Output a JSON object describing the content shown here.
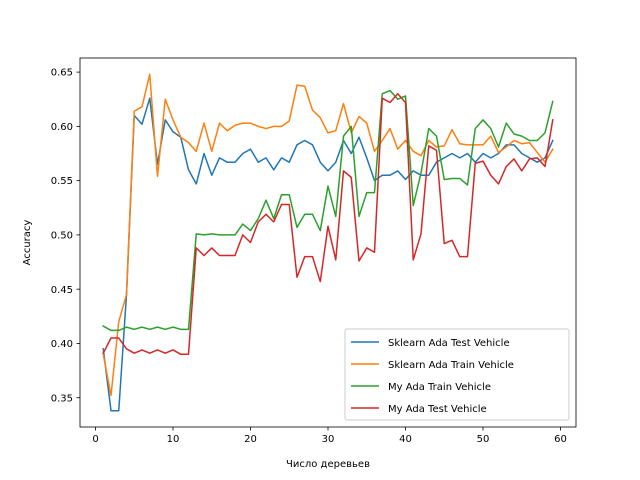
{
  "chart_data": {
    "type": "line",
    "title": "",
    "xlabel": "Число деревьев",
    "ylabel": "Accuracy",
    "xlim": [
      -2,
      62
    ],
    "ylim": [
      0.323,
      0.663
    ],
    "xticks": [
      0,
      10,
      20,
      30,
      40,
      50,
      60
    ],
    "yticks": [
      0.35,
      0.4,
      0.45,
      0.5,
      0.55,
      0.6,
      0.65
    ],
    "ytick_labels": [
      "0.35",
      "0.40",
      "0.45",
      "0.50",
      "0.55",
      "0.60",
      "0.65"
    ],
    "grid": false,
    "legend_position": "lower-right",
    "x": [
      1,
      2,
      3,
      4,
      5,
      6,
      7,
      8,
      9,
      10,
      11,
      12,
      13,
      14,
      15,
      16,
      17,
      18,
      19,
      20,
      21,
      22,
      23,
      24,
      25,
      26,
      27,
      28,
      29,
      30,
      31,
      32,
      33,
      34,
      35,
      36,
      37,
      38,
      39,
      40,
      41,
      42,
      43,
      44,
      45,
      46,
      47,
      48,
      49,
      50,
      51,
      52,
      53,
      54,
      55,
      56,
      57,
      58,
      59
    ],
    "series": [
      {
        "name": "Sklearn Ada Test Vehicle",
        "color": "#1f77b4",
        "values": [
          0.395,
          0.338,
          0.338,
          0.445,
          0.61,
          0.602,
          0.626,
          0.565,
          0.606,
          0.595,
          0.59,
          0.56,
          0.547,
          0.575,
          0.555,
          0.571,
          0.567,
          0.567,
          0.575,
          0.579,
          0.567,
          0.571,
          0.56,
          0.571,
          0.567,
          0.583,
          0.587,
          0.583,
          0.567,
          0.559,
          0.567,
          0.587,
          0.575,
          0.59,
          0.571,
          0.55,
          0.555,
          0.555,
          0.559,
          0.551,
          0.559,
          0.555,
          0.555,
          0.567,
          0.571,
          0.575,
          0.571,
          0.575,
          0.567,
          0.575,
          0.571,
          0.575,
          0.583,
          0.583,
          0.575,
          0.571,
          0.567,
          0.571,
          0.587
        ]
      },
      {
        "name": "Sklearn Ada Train Vehicle",
        "color": "#ff7f0e",
        "values": [
          0.39,
          0.352,
          0.42,
          0.445,
          0.614,
          0.618,
          0.648,
          0.554,
          0.625,
          0.606,
          0.59,
          0.585,
          0.577,
          0.603,
          0.577,
          0.603,
          0.596,
          0.601,
          0.603,
          0.603,
          0.6,
          0.598,
          0.6,
          0.6,
          0.605,
          0.638,
          0.637,
          0.615,
          0.608,
          0.594,
          0.596,
          0.621,
          0.594,
          0.609,
          0.603,
          0.577,
          0.587,
          0.598,
          0.579,
          0.587,
          0.577,
          0.573,
          0.587,
          0.581,
          0.582,
          0.597,
          0.584,
          0.583,
          0.583,
          0.583,
          0.591,
          0.576,
          0.581,
          0.587,
          0.584,
          0.585,
          0.576,
          0.567,
          0.579
        ]
      },
      {
        "name": "My Ada Train Vehicle",
        "color": "#2ca02c",
        "values": [
          0.416,
          0.412,
          0.412,
          0.415,
          0.413,
          0.415,
          0.413,
          0.415,
          0.413,
          0.415,
          0.413,
          0.413,
          0.501,
          0.5,
          0.501,
          0.5,
          0.5,
          0.5,
          0.51,
          0.504,
          0.515,
          0.532,
          0.515,
          0.537,
          0.537,
          0.507,
          0.519,
          0.519,
          0.504,
          0.545,
          0.517,
          0.591,
          0.6,
          0.517,
          0.539,
          0.539,
          0.63,
          0.633,
          0.625,
          0.628,
          0.527,
          0.557,
          0.598,
          0.591,
          0.551,
          0.552,
          0.552,
          0.546,
          0.598,
          0.606,
          0.598,
          0.581,
          0.603,
          0.593,
          0.591,
          0.587,
          0.587,
          0.594,
          0.623
        ]
      },
      {
        "name": "My Ada Test Vehicle",
        "color": "#d62728",
        "values": [
          0.391,
          0.405,
          0.405,
          0.395,
          0.391,
          0.394,
          0.391,
          0.394,
          0.391,
          0.394,
          0.39,
          0.39,
          0.488,
          0.481,
          0.488,
          0.481,
          0.481,
          0.481,
          0.5,
          0.493,
          0.512,
          0.519,
          0.512,
          0.528,
          0.528,
          0.461,
          0.48,
          0.48,
          0.457,
          0.508,
          0.477,
          0.559,
          0.553,
          0.476,
          0.488,
          0.484,
          0.626,
          0.622,
          0.63,
          0.622,
          0.477,
          0.501,
          0.582,
          0.578,
          0.492,
          0.495,
          0.48,
          0.48,
          0.566,
          0.568,
          0.555,
          0.547,
          0.563,
          0.57,
          0.559,
          0.57,
          0.571,
          0.563,
          0.606
        ]
      }
    ]
  }
}
